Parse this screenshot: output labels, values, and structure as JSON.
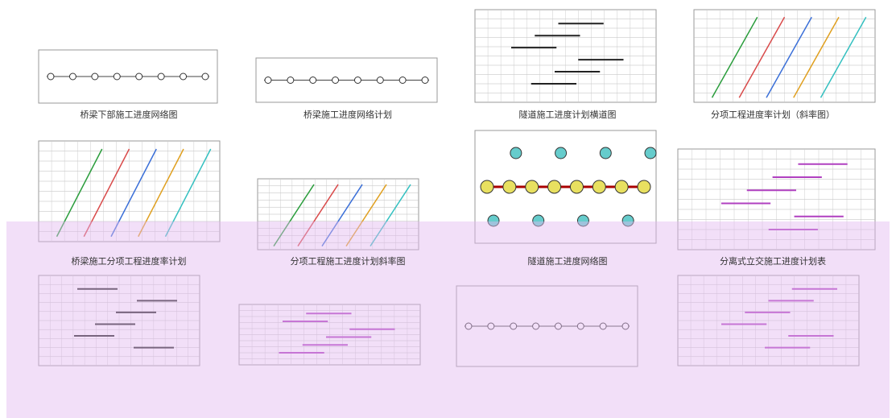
{
  "gallery": {
    "captions": [
      "桥梁下部施工进度网络图",
      "桥梁施工进度网络计划",
      "隧道施工进度计划横道图",
      "分项工程进度率计划（斜率图）",
      "桥梁施工分项工程进度率计划",
      "分项工程施工进度计划斜率图",
      "隧道施工进度网络图",
      "分离式立交施工进度计划表"
    ]
  }
}
